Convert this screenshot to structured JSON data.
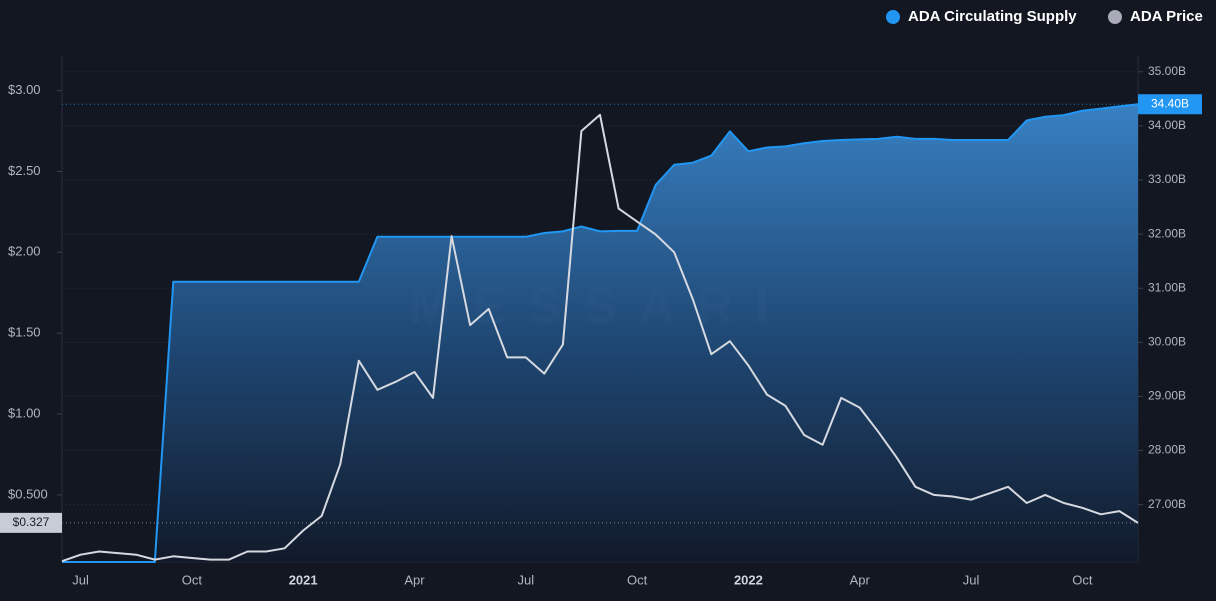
{
  "chart_data": {
    "type": "line",
    "watermark": "MESSARI",
    "categories": [
      null,
      "Jul",
      null,
      null,
      null,
      null,
      null,
      "Oct",
      null,
      null,
      null,
      null,
      null,
      "2021",
      null,
      null,
      null,
      null,
      null,
      "Apr",
      null,
      null,
      null,
      null,
      null,
      "Jul",
      null,
      null,
      null,
      null,
      null,
      "Oct",
      null,
      null,
      null,
      null,
      null,
      "2022",
      null,
      null,
      null,
      null,
      null,
      "Apr",
      null,
      null,
      null,
      null,
      null,
      "Jul",
      null,
      null,
      null,
      null,
      null,
      "Oct",
      null,
      null,
      null
    ],
    "series": [
      {
        "name": "ADA Circulating Supply",
        "color": "#2196f3",
        "axis": "y2",
        "fill": true,
        "current_label": "34.40B",
        "values": [
          25.94,
          25.94,
          25.94,
          25.94,
          25.94,
          25.94,
          31.12,
          31.12,
          31.12,
          31.12,
          31.12,
          31.12,
          31.12,
          31.12,
          31.12,
          31.12,
          31.12,
          31.95,
          31.95,
          31.95,
          31.95,
          31.95,
          31.95,
          31.95,
          31.95,
          31.95,
          32.02,
          32.05,
          32.14,
          32.05,
          32.06,
          32.06,
          32.91,
          33.28,
          33.32,
          33.45,
          33.9,
          33.53,
          33.6,
          33.62,
          33.68,
          33.72,
          33.74,
          33.75,
          33.76,
          33.8,
          33.76,
          33.76,
          33.74,
          33.74,
          33.74,
          33.74,
          34.1,
          34.17,
          34.2,
          34.28,
          34.32,
          34.36,
          34.4
        ]
      },
      {
        "name": "ADA Price",
        "color": "#d6d9e0",
        "legend_color": "#a9abb8",
        "axis": "y",
        "fill": false,
        "current_label": "$0.327",
        "values": [
          0.09,
          0.13,
          0.15,
          0.14,
          0.13,
          0.1,
          0.12,
          0.11,
          0.1,
          0.1,
          0.15,
          0.15,
          0.17,
          0.28,
          0.37,
          0.69,
          1.33,
          1.15,
          1.2,
          1.26,
          1.1,
          2.1,
          1.55,
          1.65,
          1.35,
          1.35,
          1.25,
          1.43,
          2.75,
          2.85,
          2.27,
          2.19,
          2.11,
          2.0,
          1.71,
          1.37,
          1.45,
          1.3,
          1.12,
          1.05,
          0.87,
          0.81,
          1.1,
          1.04,
          0.89,
          0.73,
          0.55,
          0.5,
          0.49,
          0.47,
          0.51,
          0.55,
          0.45,
          0.5,
          0.45,
          0.42,
          0.38,
          0.4,
          0.327
        ]
      }
    ],
    "ylim": [
      0.085,
      3.22
    ],
    "yticks": [
      {
        "value": 0.5,
        "label": "$0.500"
      },
      {
        "value": 1,
        "label": "$1.00"
      },
      {
        "value": 1.5,
        "label": "$1.50"
      },
      {
        "value": 2,
        "label": "$2.00"
      },
      {
        "value": 2.5,
        "label": "$2.50"
      },
      {
        "value": 3,
        "label": "$3.00"
      }
    ],
    "y2lim": [
      25.94,
      35.31
    ],
    "y2ticks": [
      {
        "value": 27,
        "label": "27.00B"
      },
      {
        "value": 28,
        "label": "28.00B"
      },
      {
        "value": 29,
        "label": "29.00B"
      },
      {
        "value": 30,
        "label": "30.00B"
      },
      {
        "value": 31,
        "label": "31.00B"
      },
      {
        "value": 32,
        "label": "32.00B"
      },
      {
        "value": 33,
        "label": "33.00B"
      },
      {
        "value": 34,
        "label": "34.00B"
      },
      {
        "value": 35,
        "label": "35.00B"
      }
    ],
    "grid": true,
    "legend": "top-right"
  }
}
